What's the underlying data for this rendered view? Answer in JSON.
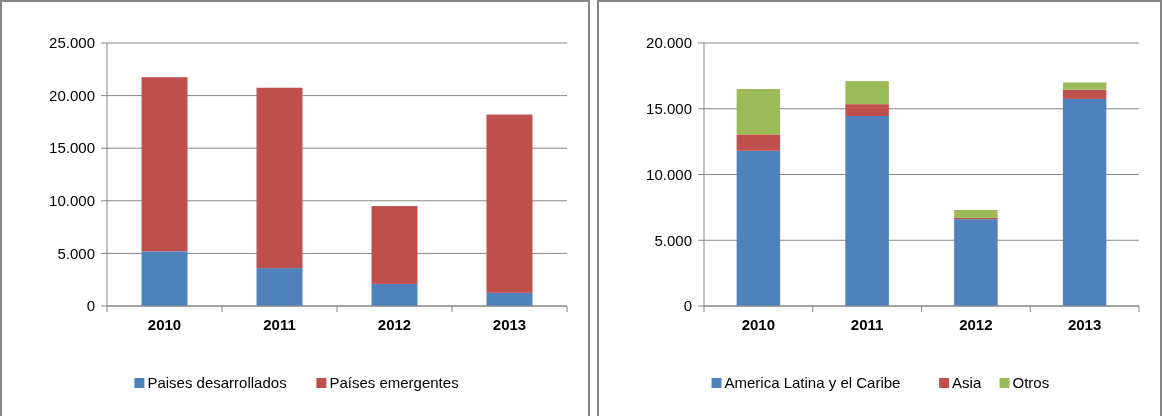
{
  "chart_data": [
    {
      "type": "bar",
      "stacked": true,
      "categories": [
        "2010",
        "2011",
        "2012",
        "2013"
      ],
      "series": [
        {
          "name": "Paises desarrollados",
          "color": "#4f81bd",
          "values": [
            5200,
            3600,
            2100,
            1250
          ]
        },
        {
          "name": "Países emergentes",
          "color": "#c0504d",
          "values": [
            16550,
            17150,
            7400,
            16950
          ]
        }
      ],
      "ylim": [
        0,
        25000
      ],
      "yticks": [
        0,
        {
          "value": 5000,
          "label": "5.000"
        },
        {
          "value": 10000,
          "label": "10.000"
        },
        {
          "value": 15000,
          "label": "15.000"
        },
        {
          "value": 20000,
          "label": "20.000"
        },
        {
          "value": 25000,
          "label": "25.000"
        }
      ],
      "grid": "y",
      "legend": "bottom"
    },
    {
      "type": "bar",
      "stacked": true,
      "categories": [
        "2010",
        "2011",
        "2012",
        "2013"
      ],
      "series": [
        {
          "name": "America Latina y el Caribe",
          "color": "#4f81bd",
          "values": [
            11800,
            14450,
            6600,
            15750
          ]
        },
        {
          "name": "Asia",
          "color": "#c0504d",
          "values": [
            1250,
            900,
            100,
            700
          ]
        },
        {
          "name": "Otros",
          "color": "#9bbb59",
          "values": [
            3450,
            1750,
            600,
            550
          ]
        }
      ],
      "ylim": [
        0,
        20000
      ],
      "yticks": [
        0,
        {
          "value": 5000,
          "label": "5.000"
        },
        {
          "value": 10000,
          "label": "10.000"
        },
        {
          "value": 15000,
          "label": "15.000"
        },
        {
          "value": 20000,
          "label": "20.000"
        }
      ],
      "grid": "y",
      "legend": "bottom"
    }
  ]
}
